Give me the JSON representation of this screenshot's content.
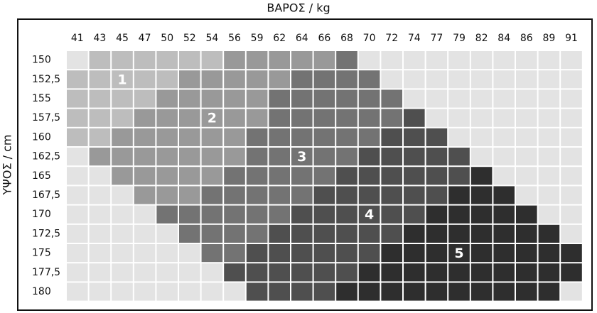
{
  "chart_data": {
    "type": "heatmap",
    "x_label": "ΒΑΡΟΣ / kg",
    "y_label": "ΥΨΟΣ / cm",
    "x": [
      "41",
      "43",
      "45",
      "47",
      "50",
      "52",
      "54",
      "56",
      "59",
      "62",
      "64",
      "66",
      "68",
      "70",
      "72",
      "74",
      "77",
      "79",
      "82",
      "84",
      "86",
      "89",
      "91"
    ],
    "y": [
      "150",
      "152,5",
      "155",
      "157,5",
      "160",
      "162,5",
      "165",
      "167,5",
      "170",
      "172,5",
      "175",
      "177,5",
      "180"
    ],
    "colors": [
      "#e3e3e3",
      "#bdbdbd",
      "#999999",
      "#737373",
      "#4f4f4f",
      "#2e2e2e"
    ],
    "values": [
      [
        0,
        1,
        1,
        1,
        1,
        1,
        1,
        2,
        2,
        2,
        2,
        2,
        3,
        0,
        0,
        0,
        0,
        0,
        0,
        0,
        0,
        0,
        0
      ],
      [
        1,
        1,
        1,
        1,
        1,
        2,
        2,
        2,
        2,
        2,
        3,
        3,
        3,
        3,
        0,
        0,
        0,
        0,
        0,
        0,
        0,
        0,
        0
      ],
      [
        1,
        1,
        1,
        1,
        2,
        2,
        2,
        2,
        2,
        3,
        3,
        3,
        3,
        3,
        3,
        0,
        0,
        0,
        0,
        0,
        0,
        0,
        0
      ],
      [
        1,
        1,
        1,
        2,
        2,
        2,
        2,
        2,
        2,
        3,
        3,
        3,
        3,
        3,
        3,
        4,
        0,
        0,
        0,
        0,
        0,
        0,
        0
      ],
      [
        1,
        1,
        2,
        2,
        2,
        2,
        2,
        2,
        3,
        3,
        3,
        3,
        3,
        3,
        4,
        4,
        4,
        0,
        0,
        0,
        0,
        0,
        0
      ],
      [
        0,
        2,
        2,
        2,
        2,
        2,
        2,
        2,
        3,
        3,
        3,
        3,
        3,
        4,
        4,
        4,
        4,
        4,
        0,
        0,
        0,
        0,
        0
      ],
      [
        0,
        0,
        2,
        2,
        2,
        2,
        2,
        3,
        3,
        3,
        3,
        3,
        4,
        4,
        4,
        4,
        4,
        4,
        5,
        0,
        0,
        0,
        0
      ],
      [
        0,
        0,
        0,
        2,
        2,
        2,
        3,
        3,
        3,
        3,
        3,
        4,
        4,
        4,
        4,
        4,
        4,
        5,
        5,
        5,
        0,
        0,
        0
      ],
      [
        0,
        0,
        0,
        0,
        3,
        3,
        3,
        3,
        3,
        3,
        4,
        4,
        4,
        4,
        4,
        4,
        5,
        5,
        5,
        5,
        5,
        0,
        0
      ],
      [
        0,
        0,
        0,
        0,
        0,
        3,
        3,
        3,
        3,
        4,
        4,
        4,
        4,
        4,
        4,
        5,
        5,
        5,
        5,
        5,
        5,
        5,
        0
      ],
      [
        0,
        0,
        0,
        0,
        0,
        0,
        3,
        3,
        4,
        4,
        4,
        4,
        4,
        4,
        5,
        5,
        5,
        5,
        5,
        5,
        5,
        5,
        5
      ],
      [
        0,
        0,
        0,
        0,
        0,
        0,
        0,
        4,
        4,
        4,
        4,
        4,
        4,
        5,
        5,
        5,
        5,
        5,
        5,
        5,
        5,
        5,
        5
      ],
      [
        0,
        0,
        0,
        0,
        0,
        0,
        0,
        0,
        4,
        4,
        4,
        4,
        5,
        5,
        5,
        5,
        5,
        5,
        5,
        5,
        5,
        5,
        0
      ]
    ],
    "annotations": [
      "1",
      "2",
      "3",
      "4",
      "5"
    ]
  }
}
